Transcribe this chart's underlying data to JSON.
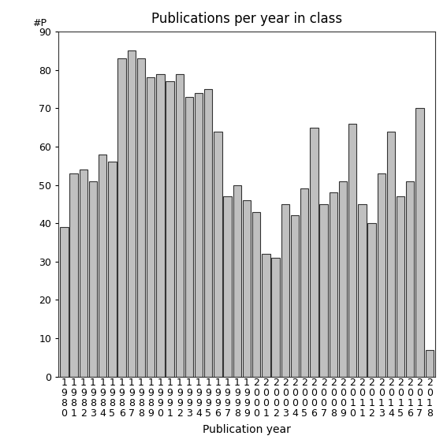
{
  "title": "Publications per year in class",
  "xlabel": "Publication year",
  "ylabel": "#P",
  "years": [
    "1980",
    "1981",
    "1982",
    "1983",
    "1984",
    "1985",
    "1986",
    "1987",
    "1988",
    "1989",
    "1990",
    "1991",
    "1992",
    "1993",
    "1994",
    "1995",
    "1996",
    "1997",
    "1998",
    "1999",
    "2000",
    "2001",
    "2002",
    "2003",
    "2004",
    "2005",
    "2006",
    "2007",
    "2008",
    "2009",
    "2010",
    "2011",
    "2012",
    "2013",
    "2014",
    "2015",
    "2016",
    "2017",
    "2018"
  ],
  "values": [
    39,
    53,
    54,
    51,
    58,
    56,
    83,
    85,
    83,
    78,
    79,
    77,
    79,
    73,
    74,
    75,
    64,
    47,
    50,
    46,
    43,
    32,
    31,
    45,
    42,
    49,
    65,
    45,
    48,
    51,
    66,
    45,
    40,
    53,
    64,
    47,
    51,
    70,
    7
  ],
  "bar_color": "#c0c0c0",
  "bar_edge_color": "#333333",
  "bar_edge_linewidth": 0.8,
  "ylim": [
    0,
    90
  ],
  "yticks": [
    0,
    10,
    20,
    30,
    40,
    50,
    60,
    70,
    80,
    90
  ],
  "background_color": "#ffffff",
  "title_fontsize": 12,
  "axis_label_fontsize": 10,
  "tick_fontsize": 9,
  "bar_width": 0.85
}
